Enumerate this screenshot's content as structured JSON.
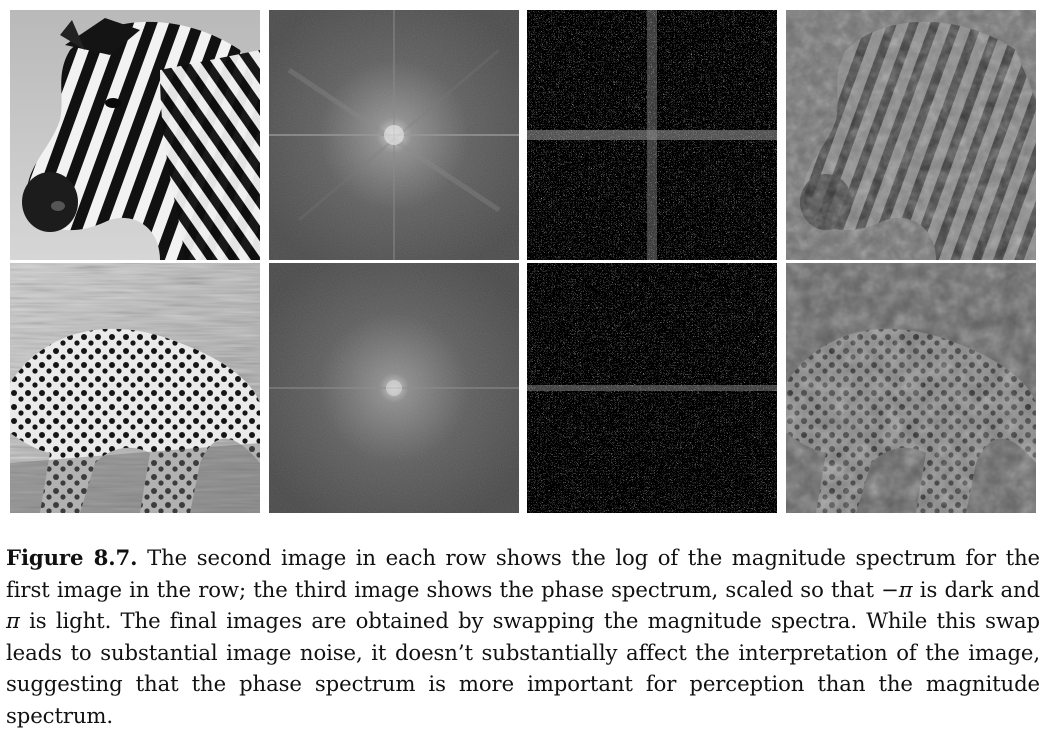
{
  "figure": {
    "label": "Figure 8.7.",
    "caption_parts": [
      "The second image in each row shows the log of the magnitude spectrum for the first image in the row; the third image shows the phase spectrum, scaled so that ",
      "−π",
      " is dark and ",
      "π",
      " is light.  The final images are obtained by swapping the magnitude spectra. While this swap leads to substantial image noise, it doesn’t substantially affect the interpretation of the image, suggesting that the phase spectrum is more important for perception than the magnitude spectrum."
    ]
  }
}
